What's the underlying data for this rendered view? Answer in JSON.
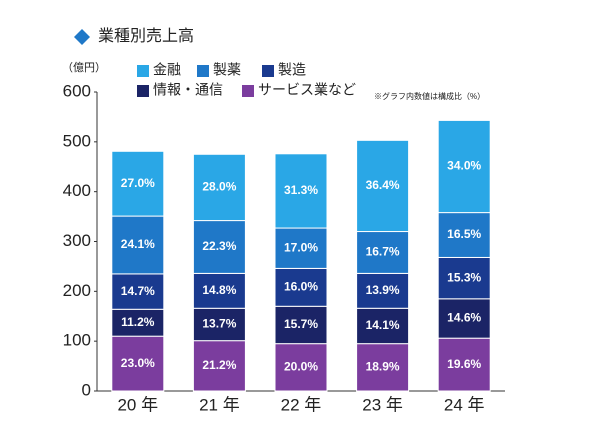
{
  "chart_data": {
    "type": "stacked_bar",
    "title": "業種別売上高",
    "y_label": "（億円）",
    "note": "※グラフ内数値は構成比（%）",
    "categories": [
      "20 年",
      "21 年",
      "22 年",
      "23 年",
      "24 年"
    ],
    "series": [
      {
        "name": "サービス業など",
        "color": "#7b3d9e",
        "values": [
          110,
          101,
          95,
          95,
          106
        ],
        "labels": [
          "23.0%",
          "21.2%",
          "20.0%",
          "18.9%",
          "19.6%"
        ]
      },
      {
        "name": "情報・通信",
        "color": "#1b2466",
        "values": [
          54,
          65,
          75,
          71,
          79
        ],
        "labels": [
          "11.2%",
          "13.7%",
          "15.7%",
          "14.1%",
          "14.6%"
        ]
      },
      {
        "name": "製造",
        "color": "#1a3a8f",
        "values": [
          71,
          70,
          76,
          70,
          83
        ],
        "labels": [
          "14.7%",
          "14.8%",
          "16.0%",
          "13.9%",
          "15.3%"
        ]
      },
      {
        "name": "製薬",
        "color": "#1f78c8",
        "values": [
          116,
          106,
          81,
          84,
          90
        ],
        "labels": [
          "24.1%",
          "22.3%",
          "17.0%",
          "16.7%",
          "16.5%"
        ]
      },
      {
        "name": "金融",
        "color": "#2aa7e6",
        "values": [
          130,
          133,
          149,
          183,
          185
        ],
        "labels": [
          "27.0%",
          "28.0%",
          "31.3%",
          "36.4%",
          "34.0%"
        ]
      }
    ],
    "ylim": [
      0,
      600
    ],
    "yticks": [
      0,
      100,
      200,
      300,
      400,
      500,
      600
    ]
  }
}
